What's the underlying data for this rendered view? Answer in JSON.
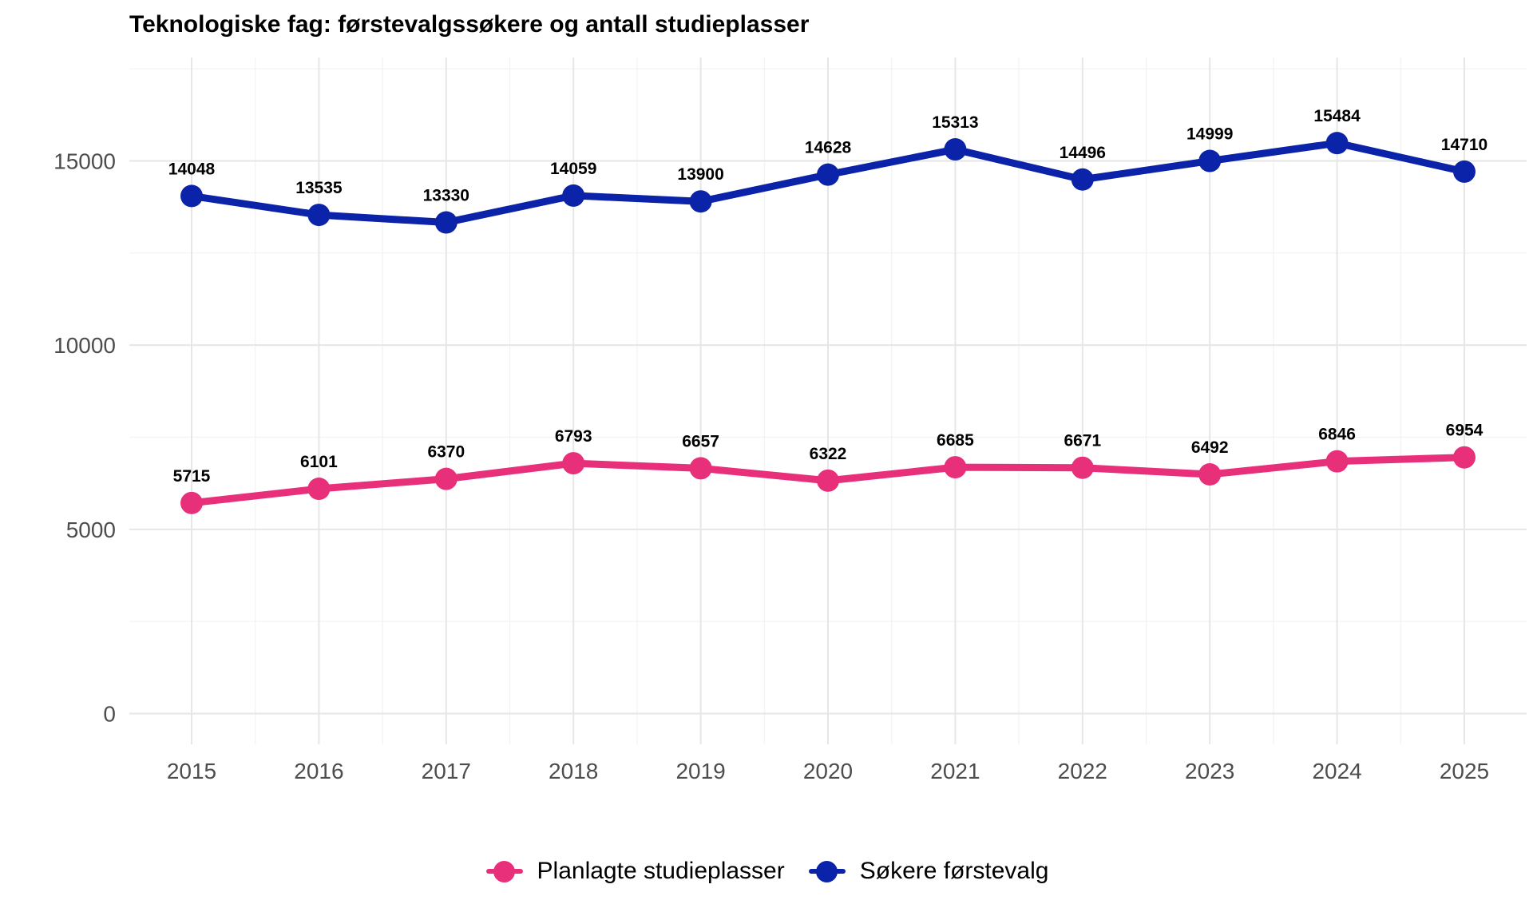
{
  "title": "Teknologiske fag: førstevalgssøkere og antall studieplasser",
  "chart_data": {
    "type": "line",
    "x": [
      2015,
      2016,
      2017,
      2018,
      2019,
      2020,
      2021,
      2022,
      2023,
      2024,
      2025
    ],
    "series": [
      {
        "name": "Søkere førstevalg",
        "color": "#0a23a8",
        "values": [
          14048,
          13535,
          13330,
          14059,
          13900,
          14628,
          15313,
          14496,
          14999,
          15484,
          14710
        ]
      },
      {
        "name": "Planlagte studieplasser",
        "color": "#e8307a",
        "values": [
          5715,
          6101,
          6370,
          6793,
          6657,
          6322,
          6685,
          6671,
          6492,
          6846,
          6954
        ]
      }
    ],
    "xlabel": "",
    "ylabel": "",
    "ylim": [
      -800,
      18000
    ],
    "yticks": [
      0,
      5000,
      10000,
      15000
    ],
    "grid": true,
    "data_labels": true,
    "legend": {
      "position": "bottom",
      "entries": [
        "Planlagte studieplasser",
        "Søkere førstevalg"
      ]
    }
  }
}
